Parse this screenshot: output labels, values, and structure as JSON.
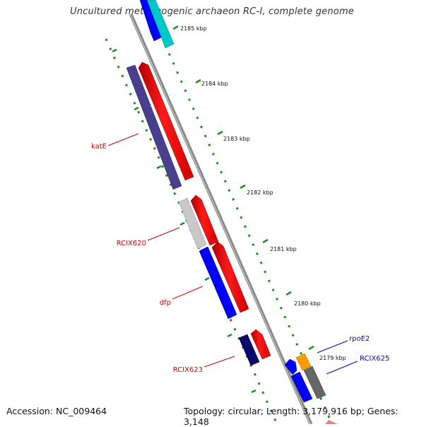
{
  "title": "Uncultured methanogenic archaeon RC-I, complete genome",
  "footer": {
    "accession": "Accession: NC_009464",
    "summary": "Topology: circular; Length: 3,179,916 bp; Genes: 3,148"
  },
  "ticks": [
    "2185 kbp",
    "2184 kbp",
    "2183 kbp",
    "2182 kbp",
    "2181 kbp",
    "2180 kbp",
    "2179 kbp"
  ],
  "gene_labels": {
    "katE": "katE",
    "RCIX620": "RCIX620",
    "dfp": "dfp",
    "RCIX623": "RCIX623",
    "rpoE2": "rpoE2",
    "RCIX625": "RCIX625"
  },
  "colors": {
    "forward_strand": "#ff0000",
    "reverse_purple": "#4a3f8f",
    "reverse_blue": "#0000ff",
    "navy": "#0b0b6e",
    "cyan": "#00c8c8",
    "orange": "#ff9900",
    "gray": "#666666",
    "light_gray": "#c8c8c8",
    "backbone": "#7a7a7a",
    "dotted_ring": "#228b22",
    "reverse_label": "#cc0000",
    "forward_label": "#0000cc"
  }
}
